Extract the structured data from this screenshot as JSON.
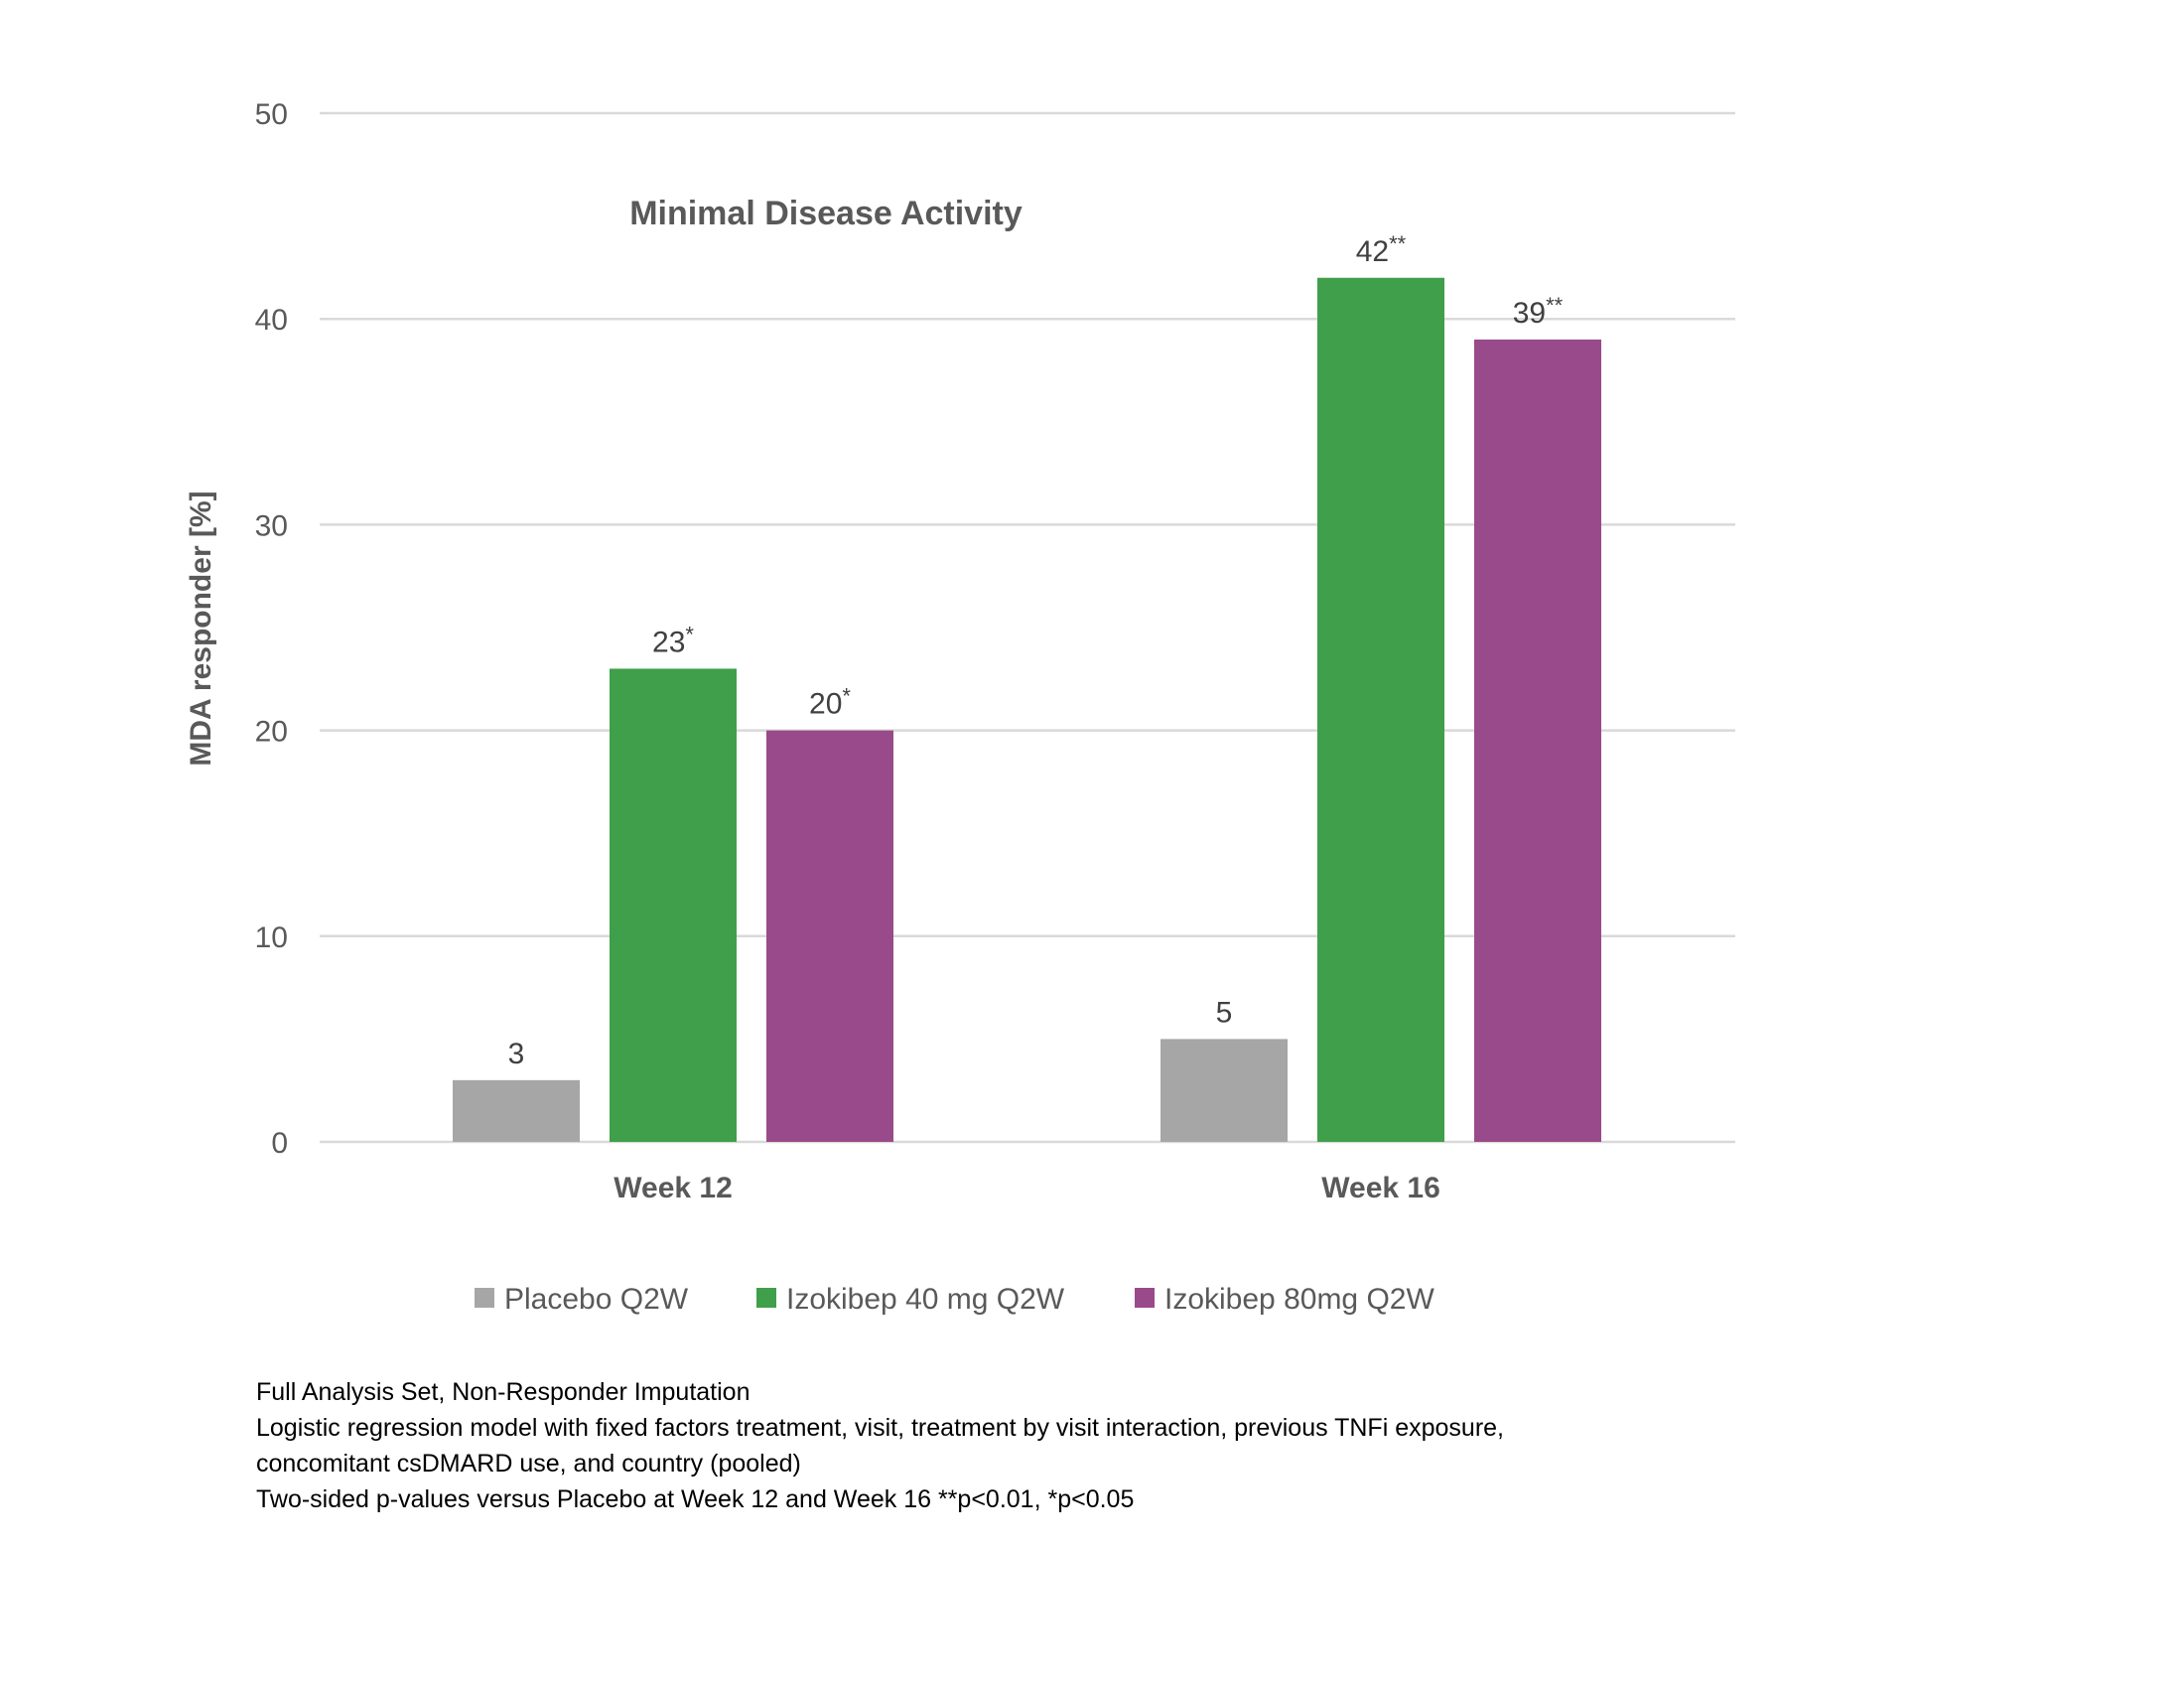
{
  "colors": {
    "gridline": "#d9d9d9",
    "text": "#595959"
  },
  "chart_data": {
    "type": "bar",
    "title": "Minimal Disease Activity",
    "xlabel": "",
    "ylabel": "MDA responder [%]",
    "ylim": [
      0,
      50
    ],
    "yticks": [
      0,
      10,
      20,
      30,
      40,
      50
    ],
    "grid": true,
    "legend_position": "bottom",
    "categories": [
      "Week 12",
      "Week 16"
    ],
    "series": [
      {
        "name": "Placebo Q2W",
        "color": "#a6a6a6",
        "values": [
          3,
          5
        ],
        "labels": [
          "3",
          "5"
        ],
        "marks": [
          "",
          ""
        ]
      },
      {
        "name": "Izokibep 40 mg Q2W",
        "color": "#3f9f4a",
        "values": [
          23,
          42
        ],
        "labels": [
          "23",
          "42"
        ],
        "marks": [
          "*",
          "**"
        ]
      },
      {
        "name": "Izokibep 80mg Q2W",
        "color": "#994a8a",
        "values": [
          20,
          39
        ],
        "labels": [
          "20",
          "39"
        ],
        "marks": [
          "*",
          "**"
        ]
      }
    ]
  },
  "footnotes": [
    "Full Analysis Set, Non-Responder Imputation",
    "Logistic regression model with fixed factors treatment, visit, treatment by visit interaction, previous TNFi exposure,",
    "concomitant csDMARD use, and country (pooled)",
    "Two-sided p-values versus Placebo at Week 12 and Week 16  **p<0.01, *p<0.05"
  ]
}
